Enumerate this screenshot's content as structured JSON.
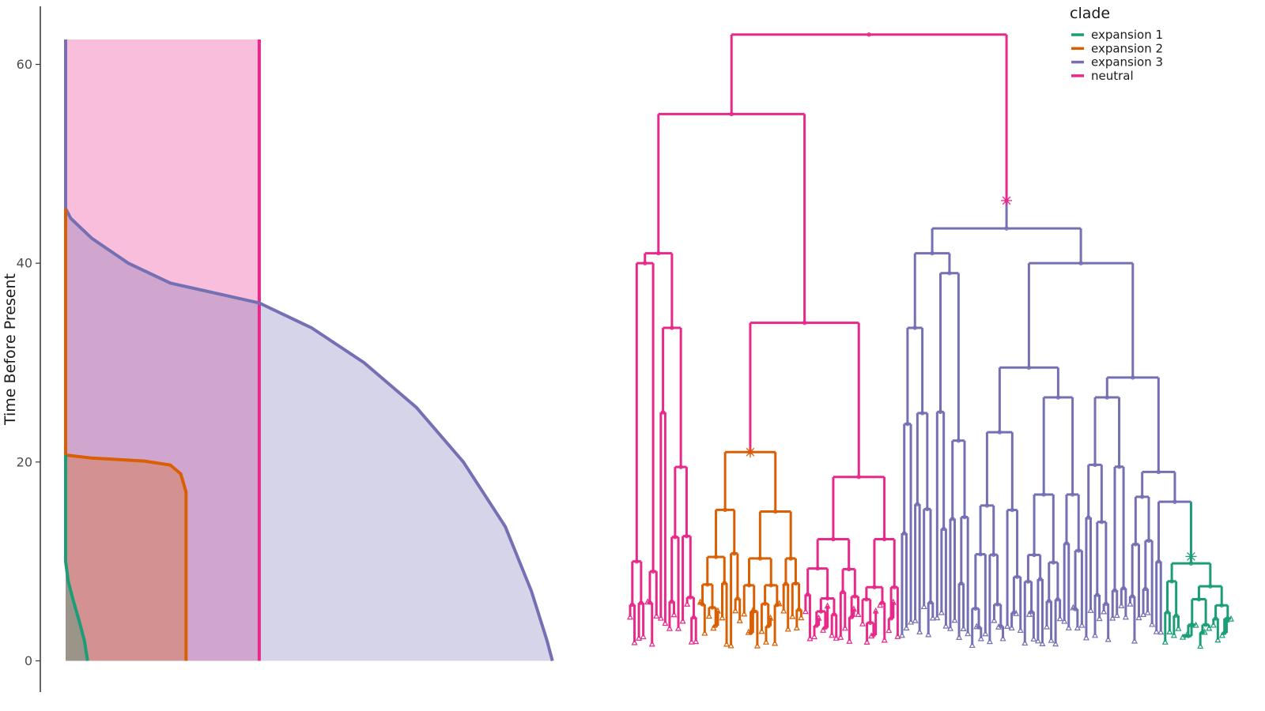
{
  "chart_data": {
    "type": "line",
    "ylabel": "Time Before Present",
    "xlabel": "",
    "ylim": [
      -6.5,
      65
    ],
    "yticks": [
      0,
      20,
      40,
      60
    ],
    "grid": false,
    "legend": {
      "title": "clade",
      "position": "top-right",
      "entries": [
        {
          "name": "expansion 1",
          "color": "#1b9e77"
        },
        {
          "name": "expansion 2",
          "color": "#d95f02"
        },
        {
          "name": "expansion 3",
          "color": "#7570b3"
        },
        {
          "name": "neutral",
          "color": "#e7298a"
        }
      ]
    },
    "population_panel": {
      "description_units": "relative population size (x) vs time before present (y)",
      "xlim": [
        0,
        100
      ],
      "series": [
        {
          "name": "neutral",
          "color": "#e7298a",
          "points": [
            [
              37,
              62.5
            ],
            [
              37,
              0
            ]
          ]
        },
        {
          "name": "expansion 3",
          "color": "#7570b3",
          "points": [
            [
              0,
              62.5
            ],
            [
              0,
              45.5
            ],
            [
              1,
              44.5
            ],
            [
              5,
              42.5
            ],
            [
              12,
              40
            ],
            [
              20,
              38
            ],
            [
              37,
              36
            ],
            [
              47,
              33.5
            ],
            [
              57,
              30
            ],
            [
              67,
              25.5
            ],
            [
              76,
              20
            ],
            [
              84,
              13.5
            ],
            [
              89,
              7
            ],
            [
              92,
              2
            ],
            [
              93,
              0
            ]
          ]
        },
        {
          "name": "expansion 2",
          "color": "#d95f02",
          "points": [
            [
              0,
              45.5
            ],
            [
              0,
              20.7
            ],
            [
              5,
              20.4
            ],
            [
              15,
              20.1
            ],
            [
              20,
              19.7
            ],
            [
              22,
              18.8
            ],
            [
              23,
              17
            ],
            [
              23,
              0
            ]
          ]
        },
        {
          "name": "expansion 1",
          "color": "#1b9e77",
          "points": [
            [
              0,
              20.7
            ],
            [
              0,
              10
            ],
            [
              0.5,
              8
            ],
            [
              1.5,
              6
            ],
            [
              2.6,
              4
            ],
            [
              3.6,
              2
            ],
            [
              4.2,
              0
            ]
          ]
        }
      ]
    },
    "tree": {
      "top_age": 63,
      "min_age": 1.5,
      "clades": [
        {
          "name": "neutral",
          "color": "#e7298a",
          "tips": 38,
          "root_age": 63,
          "note_ages": [
            55,
            41,
            34,
            46.3
          ]
        },
        {
          "name": "expansion 2",
          "color": "#d95f02",
          "tips": 24,
          "root_age": 21
        },
        {
          "name": "expansion 3",
          "color": "#7570b3",
          "tips": 68,
          "root_age": 43.5
        },
        {
          "name": "expansion 1",
          "color": "#1b9e77",
          "tips": 16,
          "root_age": 9.8
        }
      ],
      "mutation_markers": [
        {
          "clade": "expansion 3",
          "age": 46.3
        },
        {
          "clade": "expansion 2",
          "age": 21
        },
        {
          "clade": "expansion 1",
          "age": 10.5
        }
      ]
    }
  }
}
